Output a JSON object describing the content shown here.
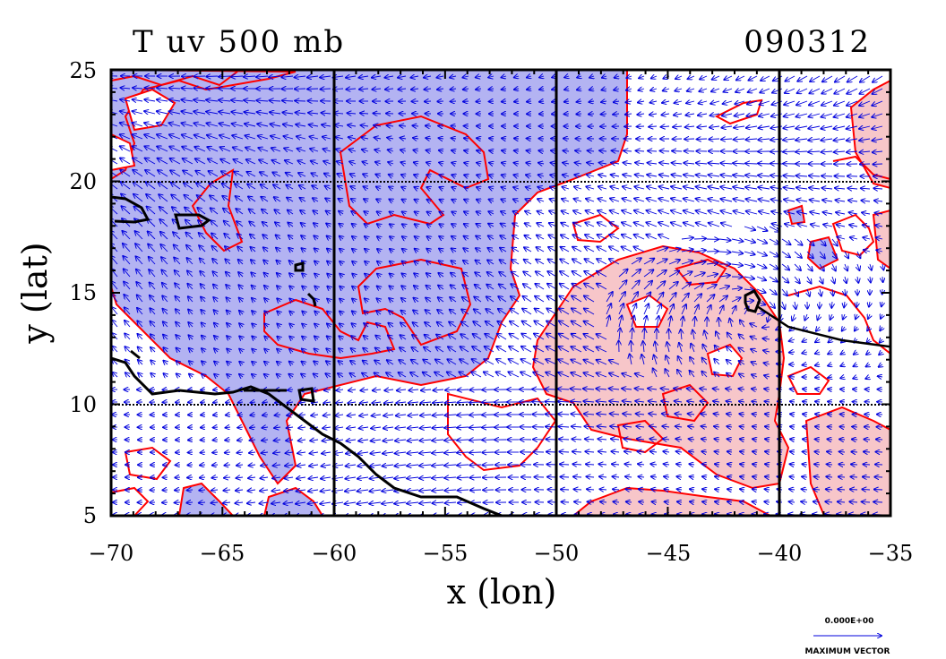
{
  "title": "T uv 500 mb",
  "date_code": "090312",
  "xlabel": "x (lon)",
  "ylabel": "y (lat)",
  "x_ticks": [
    "−70",
    "−65",
    "−60",
    "−55",
    "−50",
    "−45",
    "−40",
    "−35"
  ],
  "y_ticks": [
    "25",
    "20",
    "15",
    "10",
    "5"
  ],
  "legend": {
    "value": "0.000E+00",
    "label": "MAXIMUM VECTOR"
  },
  "map": {
    "lon_range": [
      -70,
      -35
    ],
    "lat_range": [
      5,
      25
    ],
    "grid_lon": [
      -60,
      -50,
      -40
    ],
    "grid_lat": [
      10,
      20
    ],
    "colors": {
      "cold_fill": "#b3b3f2",
      "warm_fill": "#f7c6c9",
      "contour": "#ff0000",
      "vectors": "#0000dd",
      "coast": "#000000"
    },
    "vector_field": "wind vectors (uv)",
    "shading": "temperature anomaly (blue cold, red warm)"
  }
}
